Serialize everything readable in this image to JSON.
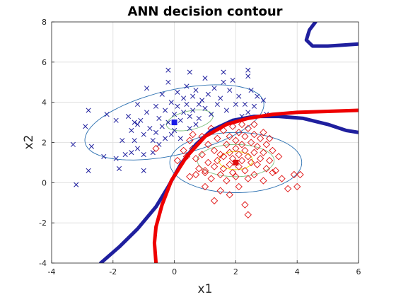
{
  "chart_data": {
    "type": "scatter",
    "title": "ANN decision contour",
    "xlabel": "x1",
    "ylabel": "x2",
    "xlim": [
      -4,
      6
    ],
    "ylim": [
      -4,
      8
    ],
    "xticks": [
      -4,
      -2,
      0,
      2,
      4,
      6
    ],
    "yticks": [
      -4,
      -2,
      0,
      2,
      4,
      6,
      8
    ],
    "xtick_labels": [
      "-4",
      "-2",
      "0",
      "2",
      "4",
      "6"
    ],
    "ytick_labels": [
      "-4",
      "-2",
      "0",
      "2",
      "4",
      "6",
      "8"
    ],
    "grid": true,
    "legend": "none",
    "series": [
      {
        "marker": "x",
        "color": "#1f1f9e",
        "points": [
          [
            -3.3,
            1.9
          ],
          [
            -3.2,
            -0.1
          ],
          [
            -2.8,
            3.6
          ],
          [
            -2.9,
            2.8
          ],
          [
            -2.7,
            1.8
          ],
          [
            -2.8,
            0.6
          ],
          [
            -2.3,
            1.3
          ],
          [
            -2.2,
            3.4
          ],
          [
            -1.9,
            3.1
          ],
          [
            -1.9,
            1.2
          ],
          [
            -1.8,
            0.7
          ],
          [
            -1.7,
            2.1
          ],
          [
            -1.6,
            1.4
          ],
          [
            -1.5,
            3.3
          ],
          [
            -1.4,
            2.6
          ],
          [
            -1.4,
            1.5
          ],
          [
            -1.3,
            3.0
          ],
          [
            -1.3,
            2.1
          ],
          [
            -1.2,
            3.9
          ],
          [
            -1.2,
            2.9
          ],
          [
            -1.2,
            1.7
          ],
          [
            -1.1,
            3.1
          ],
          [
            -1.0,
            2.4
          ],
          [
            -1.0,
            1.4
          ],
          [
            -1.0,
            0.6
          ],
          [
            -0.9,
            4.7
          ],
          [
            -0.9,
            3.5
          ],
          [
            -0.8,
            2.7
          ],
          [
            -0.7,
            2.1
          ],
          [
            -0.7,
            1.5
          ],
          [
            -0.6,
            3.8
          ],
          [
            -0.6,
            2.5
          ],
          [
            -0.5,
            3.2
          ],
          [
            -0.5,
            1.9
          ],
          [
            -0.4,
            4.4
          ],
          [
            -0.4,
            2.8
          ],
          [
            -0.3,
            3.6
          ],
          [
            -0.3,
            2.2
          ],
          [
            -0.2,
            5.0
          ],
          [
            -0.2,
            3.0
          ],
          [
            -0.1,
            4.0
          ],
          [
            -0.1,
            2.4
          ],
          [
            0.0,
            3.4
          ],
          [
            0.0,
            2.6
          ],
          [
            0.1,
            4.5
          ],
          [
            0.1,
            3.8
          ],
          [
            0.2,
            3.1
          ],
          [
            0.2,
            2.2
          ],
          [
            0.3,
            4.2
          ],
          [
            0.3,
            3.5
          ],
          [
            0.4,
            4.8
          ],
          [
            0.4,
            3.9
          ],
          [
            0.5,
            3.3
          ],
          [
            0.5,
            2.7
          ],
          [
            0.6,
            4.3
          ],
          [
            0.6,
            3.6
          ],
          [
            0.7,
            4.6
          ],
          [
            0.7,
            2.9
          ],
          [
            0.8,
            3.9
          ],
          [
            0.8,
            3.2
          ],
          [
            0.9,
            4.1
          ],
          [
            1.0,
            5.2
          ],
          [
            1.0,
            3.7
          ],
          [
            1.1,
            4.4
          ],
          [
            1.2,
            3.4
          ],
          [
            1.3,
            4.7
          ],
          [
            1.4,
            3.9
          ],
          [
            1.5,
            4.2
          ],
          [
            1.6,
            5.0
          ],
          [
            1.7,
            3.6
          ],
          [
            1.8,
            4.6
          ],
          [
            1.9,
            5.1
          ],
          [
            2.0,
            3.9
          ],
          [
            2.1,
            4.3
          ],
          [
            2.2,
            3.3
          ],
          [
            2.3,
            3.9
          ],
          [
            2.4,
            5.3
          ],
          [
            2.4,
            3.5
          ],
          [
            2.5,
            4.6
          ],
          [
            2.6,
            3.8
          ],
          [
            2.7,
            4.3
          ],
          [
            2.9,
            4.1
          ],
          [
            3.0,
            3.4
          ],
          [
            -0.2,
            5.6
          ],
          [
            0.5,
            5.5
          ],
          [
            1.6,
            5.5
          ],
          [
            2.4,
            5.6
          ]
        ]
      },
      {
        "marker": "o",
        "color": "#e01010",
        "points": [
          [
            -0.6,
            1.7
          ],
          [
            0.1,
            1.1
          ],
          [
            0.4,
            1.3
          ],
          [
            0.5,
            2.1
          ],
          [
            0.5,
            0.3
          ],
          [
            0.6,
            2.4
          ],
          [
            0.6,
            1.7
          ],
          [
            0.7,
            1.2
          ],
          [
            0.7,
            0.4
          ],
          [
            0.8,
            0.7
          ],
          [
            0.9,
            2.3
          ],
          [
            0.9,
            1.4
          ],
          [
            1.0,
            0.5
          ],
          [
            1.0,
            -0.2
          ],
          [
            1.1,
            1.9
          ],
          [
            1.1,
            1.0
          ],
          [
            1.2,
            2.7
          ],
          [
            1.2,
            0.2
          ],
          [
            1.3,
            1.6
          ],
          [
            1.3,
            0.8
          ],
          [
            1.3,
            -0.9
          ],
          [
            1.4,
            2.2
          ],
          [
            1.4,
            1.1
          ],
          [
            1.5,
            0.4
          ],
          [
            1.5,
            -0.4
          ],
          [
            1.6,
            2.6
          ],
          [
            1.6,
            1.3
          ],
          [
            1.6,
            0.7
          ],
          [
            1.7,
            1.9
          ],
          [
            1.7,
            0.1
          ],
          [
            1.8,
            2.3
          ],
          [
            1.8,
            1.5
          ],
          [
            1.8,
            0.9
          ],
          [
            1.8,
            -0.6
          ],
          [
            1.9,
            2.8
          ],
          [
            1.9,
            1.2
          ],
          [
            1.9,
            0.5
          ],
          [
            2.0,
            2.1
          ],
          [
            2.0,
            1.7
          ],
          [
            2.0,
            0.3
          ],
          [
            2.1,
            2.5
          ],
          [
            2.1,
            1.4
          ],
          [
            2.1,
            0.8
          ],
          [
            2.1,
            -0.2
          ],
          [
            2.2,
            2.9
          ],
          [
            2.2,
            1.9
          ],
          [
            2.2,
            1.1
          ],
          [
            2.3,
            2.3
          ],
          [
            2.3,
            1.6
          ],
          [
            2.3,
            0.6
          ],
          [
            2.3,
            -1.1
          ],
          [
            2.4,
            2.7
          ],
          [
            2.4,
            1.3
          ],
          [
            2.4,
            0.2
          ],
          [
            2.5,
            2.0
          ],
          [
            2.5,
            1.0
          ],
          [
            2.6,
            2.4
          ],
          [
            2.6,
            1.5
          ],
          [
            2.6,
            0.4
          ],
          [
            2.7,
            1.8
          ],
          [
            2.7,
            0.9
          ],
          [
            2.8,
            2.2
          ],
          [
            2.8,
            1.2
          ],
          [
            2.9,
            1.5
          ],
          [
            2.9,
            0.1
          ],
          [
            3.0,
            1.9
          ],
          [
            3.0,
            0.7
          ],
          [
            3.1,
            1.1
          ],
          [
            3.2,
            1.6
          ],
          [
            3.3,
            0.6
          ],
          [
            3.4,
            1.3
          ],
          [
            3.5,
            0.2
          ],
          [
            3.7,
            -0.3
          ],
          [
            3.9,
            0.4
          ],
          [
            4.1,
            0.4
          ],
          [
            4.0,
            -0.2
          ],
          [
            1.5,
            1.4
          ],
          [
            1.0,
            0.6
          ],
          [
            0.3,
            1.6
          ],
          [
            3.2,
            0.5
          ],
          [
            2.4,
            -1.6
          ],
          [
            3.1,
            2.2
          ],
          [
            2.9,
            2.5
          ],
          [
            2.6,
            2.9
          ]
        ]
      }
    ],
    "class_means": [
      {
        "x": 0.0,
        "y": 3.0,
        "color": "#1a1ae6"
      },
      {
        "x": 2.0,
        "y": 1.0,
        "color": "#e01010"
      }
    ],
    "ellipses": [
      {
        "cx": 0.0,
        "cy": 3.0,
        "rx": 3.1,
        "ry": 1.55,
        "angle_deg": 23,
        "color": "#2a6fb0"
      },
      {
        "cx": 0.5,
        "cy": 3.1,
        "rx": 0.8,
        "ry": 0.45,
        "angle_deg": 23,
        "color": "#7fbf7f"
      },
      {
        "cx": 2.0,
        "cy": 1.0,
        "rx": 2.15,
        "ry": 1.5,
        "angle_deg": 0,
        "color": "#2a6fb0"
      },
      {
        "cx": 2.0,
        "cy": 1.1,
        "rx": 1.25,
        "ry": 0.8,
        "angle_deg": 0,
        "color": "#7fbf7f"
      },
      {
        "cx": 2.0,
        "cy": 1.1,
        "rx": 0.55,
        "ry": 0.45,
        "angle_deg": 0,
        "color": "#e6e600"
      }
    ],
    "decision_curves": [
      {
        "color": "#1f1f9e",
        "points": [
          [
            -2.4,
            -4.0
          ],
          [
            -1.8,
            -3.2
          ],
          [
            -1.2,
            -2.3
          ],
          [
            -0.6,
            -1.2
          ],
          [
            -0.2,
            -0.2
          ],
          [
            0.2,
            0.9
          ],
          [
            0.7,
            1.9
          ],
          [
            1.2,
            2.6
          ],
          [
            1.9,
            3.1
          ],
          [
            2.6,
            3.3
          ],
          [
            3.4,
            3.3
          ],
          [
            4.2,
            3.2
          ],
          [
            5.0,
            2.9
          ],
          [
            5.6,
            2.6
          ],
          [
            6.0,
            2.5
          ]
        ]
      },
      {
        "color": "#1f1f9e",
        "points": [
          [
            4.6,
            8.0
          ],
          [
            4.4,
            7.6
          ],
          [
            4.3,
            7.1
          ],
          [
            4.5,
            6.8
          ],
          [
            5.0,
            6.8
          ],
          [
            5.5,
            6.85
          ],
          [
            6.0,
            6.9
          ]
        ]
      },
      {
        "color": "#ee0000",
        "points": [
          [
            -0.6,
            -4.0
          ],
          [
            -0.65,
            -3.0
          ],
          [
            -0.6,
            -2.2
          ],
          [
            -0.4,
            -1.1
          ],
          [
            -0.1,
            0.1
          ],
          [
            0.4,
            1.3
          ],
          [
            1.0,
            2.3
          ],
          [
            1.7,
            2.9
          ],
          [
            2.4,
            3.2
          ],
          [
            3.2,
            3.4
          ],
          [
            4.0,
            3.5
          ],
          [
            5.0,
            3.55
          ],
          [
            6.0,
            3.6
          ]
        ]
      }
    ]
  }
}
